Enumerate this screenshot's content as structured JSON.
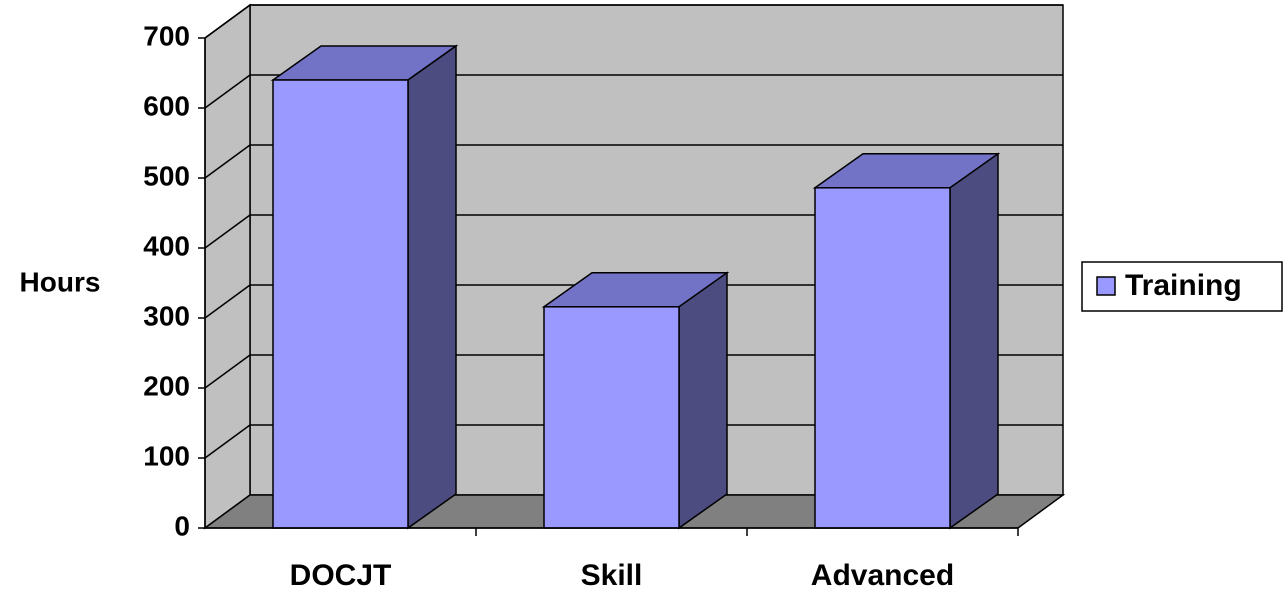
{
  "chart_data": {
    "type": "bar",
    "categories": [
      "DOCJT",
      "Skill",
      "Advanced"
    ],
    "y_label": "Hours",
    "series": [
      {
        "name": "Training",
        "color": "#9999ff",
        "values": [
          640,
          316,
          486
        ]
      }
    ],
    "ylim": [
      0,
      700
    ],
    "yticks": [
      0,
      100,
      200,
      300,
      400,
      500,
      600,
      700
    ],
    "grid": true,
    "legend": "right"
  }
}
